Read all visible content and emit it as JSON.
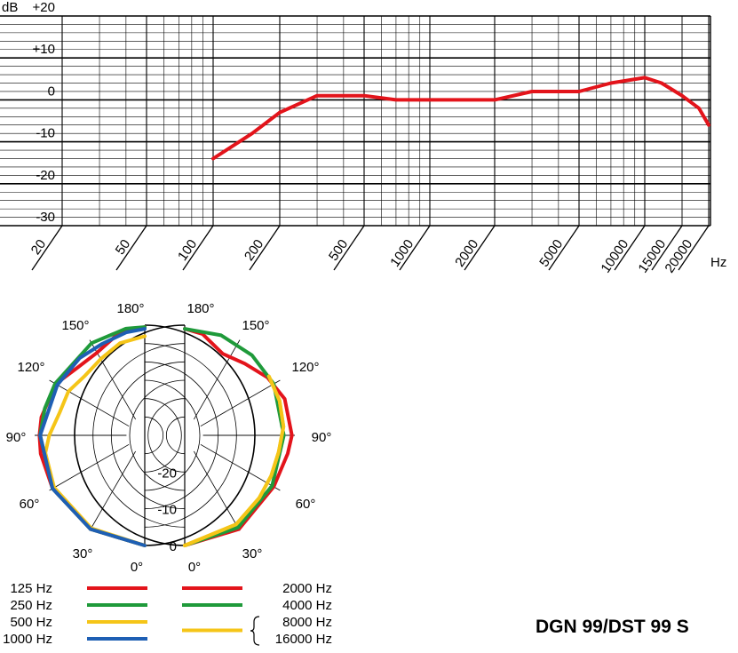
{
  "chart_data": [
    {
      "type": "line",
      "xscale": "log",
      "x_ticks": [
        "20",
        "50",
        "100",
        "200",
        "500",
        "1000",
        "2000",
        "5000",
        "10000",
        "15000",
        "20000"
      ],
      "x_unit": "Hz",
      "y_unit": "dB",
      "y_ticks": [
        "+20",
        "+10",
        "0",
        "-10",
        "-20",
        "-30"
      ],
      "ylim": [
        -30,
        20
      ],
      "grid": true,
      "series": [
        {
          "color": "#e3141b",
          "points": [
            [
              100,
              -14
            ],
            [
              150,
              -8
            ],
            [
              200,
              -3
            ],
            [
              300,
              1
            ],
            [
              500,
              1
            ],
            [
              700,
              0
            ],
            [
              1000,
              0
            ],
            [
              2000,
              0
            ],
            [
              3000,
              2
            ],
            [
              5000,
              2
            ],
            [
              7000,
              4
            ],
            [
              10000,
              5.3
            ],
            [
              12000,
              4
            ],
            [
              15000,
              1
            ],
            [
              18000,
              -2
            ],
            [
              20000,
              -6
            ]
          ]
        }
      ]
    },
    {
      "type": "polar",
      "angle_labels": [
        "180°",
        "150°",
        "120°",
        "90°",
        "60°",
        "30°",
        "0°"
      ],
      "radial_labels": [
        "-20",
        "-10",
        "0"
      ],
      "rlim": [
        -30,
        0
      ],
      "series": [
        {
          "name": "125 Hz",
          "side": "left",
          "color": "#e3141b",
          "points": [
            [
              0,
              0
            ],
            [
              30,
              -0.5
            ],
            [
              60,
              -1
            ],
            [
              80,
              -1.2
            ],
            [
              90,
              -1.3
            ],
            [
              100,
              -1.4
            ],
            [
              120,
              -2
            ],
            [
              135,
              -4
            ],
            [
              150,
              -4
            ],
            [
              165,
              -1.5
            ],
            [
              180,
              -0.5
            ]
          ]
        },
        {
          "name": "250 Hz",
          "side": "left",
          "color": "#1f9a3a",
          "points": [
            [
              0,
              0
            ],
            [
              30,
              -0.5
            ],
            [
              60,
              -1
            ],
            [
              90,
              -1.5
            ],
            [
              105,
              -1.8
            ],
            [
              120,
              -1.8
            ],
            [
              150,
              -1
            ],
            [
              170,
              -0.5
            ],
            [
              180,
              -0.5
            ]
          ]
        },
        {
          "name": "500 Hz",
          "side": "left",
          "color": "#f5c518",
          "points": [
            [
              0,
              0
            ],
            [
              30,
              -0.8
            ],
            [
              60,
              -1.5
            ],
            [
              80,
              -2.5
            ],
            [
              90,
              -4
            ],
            [
              105,
              -6
            ],
            [
              120,
              -6
            ],
            [
              135,
              -7
            ],
            [
              150,
              -6
            ],
            [
              165,
              -4
            ],
            [
              180,
              -3
            ]
          ]
        },
        {
          "name": "1000 Hz",
          "side": "left",
          "color": "#1e5fb4",
          "points": [
            [
              0,
              0
            ],
            [
              30,
              -0.5
            ],
            [
              60,
              -1
            ],
            [
              90,
              -1.5
            ],
            [
              120,
              -2.5
            ],
            [
              140,
              -2.5
            ],
            [
              155,
              -2.5
            ],
            [
              170,
              -1.5
            ],
            [
              180,
              -1
            ]
          ]
        },
        {
          "name": "2000 Hz",
          "side": "right",
          "color": "#e3141b",
          "points": [
            [
              0,
              0
            ],
            [
              30,
              -0.5
            ],
            [
              60,
              -2
            ],
            [
              80,
              -1.5
            ],
            [
              90,
              -0.8
            ],
            [
              110,
              -1
            ],
            [
              125,
              -2.5
            ],
            [
              140,
              -4.5
            ],
            [
              155,
              -5.5
            ],
            [
              170,
              -2
            ],
            [
              180,
              -1
            ]
          ]
        },
        {
          "name": "4000 Hz",
          "side": "right",
          "color": "#1f9a3a",
          "points": [
            [
              0,
              0
            ],
            [
              30,
              -1
            ],
            [
              60,
              -2.5
            ],
            [
              90,
              -3
            ],
            [
              120,
              -2
            ],
            [
              140,
              -1.5
            ],
            [
              160,
              -1
            ],
            [
              180,
              -1
            ]
          ]
        },
        {
          "name": "8000 Hz",
          "side": "right",
          "color": "#f5c518",
          "points": [
            [
              0,
              0
            ],
            [
              30,
              -2
            ],
            [
              50,
              -3.5
            ],
            [
              65,
              -4
            ],
            [
              80,
              -4
            ],
            [
              95,
              -3
            ],
            [
              110,
              -2.5
            ],
            [
              125,
              -2
            ]
          ]
        },
        {
          "name": "16000 Hz",
          "side": "right",
          "color": "#f5c518",
          "points": [
            [
              0,
              0
            ],
            [
              30,
              -2
            ],
            [
              50,
              -3.5
            ],
            [
              65,
              -4
            ],
            [
              80,
              -4
            ],
            [
              95,
              -3
            ],
            [
              110,
              -2.5
            ],
            [
              125,
              -2
            ]
          ]
        }
      ]
    }
  ],
  "legend": {
    "left": [
      {
        "label": "125 Hz",
        "color": "#e3141b"
      },
      {
        "label": "250 Hz",
        "color": "#1f9a3a"
      },
      {
        "label": "500 Hz",
        "color": "#f5c518"
      },
      {
        "label": "1000 Hz",
        "color": "#1e5fb4"
      }
    ],
    "right": [
      {
        "label": "2000 Hz",
        "color": "#e3141b"
      },
      {
        "label": "4000 Hz",
        "color": "#1f9a3a"
      },
      {
        "label": "8000 Hz",
        "color": "#f5c518"
      },
      {
        "label": "16000 Hz",
        "color": "#f5c518"
      }
    ]
  },
  "model_title": "DGN 99/DST 99 S"
}
